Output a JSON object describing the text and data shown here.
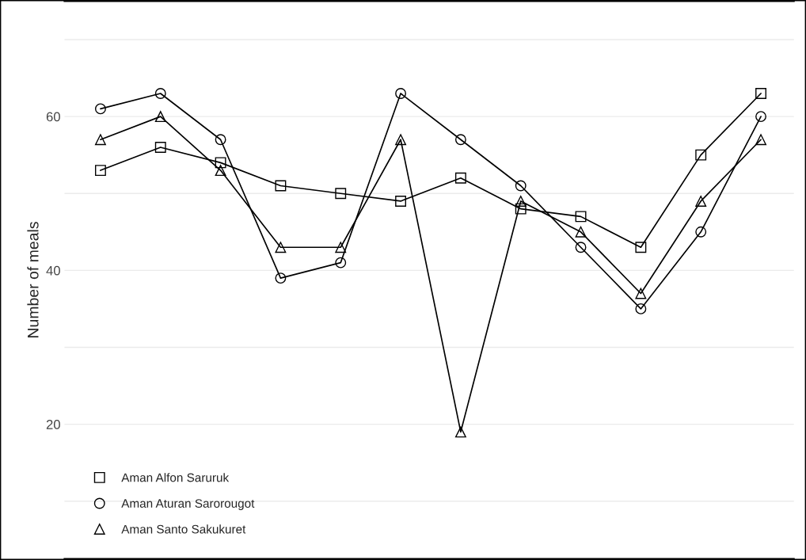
{
  "chart_data": {
    "type": "line",
    "ylabel": "Number of meals",
    "categories": [
      null,
      null,
      null,
      null,
      null,
      null,
      null,
      null,
      null,
      null,
      null,
      null
    ],
    "series": [
      {
        "name": "Aman Alfon Saruruk",
        "color": "#000000",
        "marker": "square",
        "values": [
          53,
          56,
          54,
          51,
          50,
          49,
          52,
          48,
          47,
          43,
          55,
          63
        ]
      },
      {
        "name": "Aman Aturan Sarorougot",
        "color": "#000000",
        "marker": "circle",
        "values": [
          61,
          63,
          57,
          39,
          41,
          63,
          57,
          51,
          43,
          35,
          45,
          60
        ]
      },
      {
        "name": "Aman Santo Sakukuret",
        "color": "#000000",
        "marker": "triangle",
        "values": [
          57,
          60,
          53,
          43,
          43,
          57,
          19,
          49,
          45,
          37,
          49,
          57
        ]
      }
    ],
    "ylim": [
      2.5,
      75
    ],
    "yticks": [
      {
        "value": 10,
        "label": null
      },
      20,
      {
        "value": 30,
        "label": null
      },
      40,
      {
        "value": 50,
        "label": null
      },
      60,
      {
        "value": 70,
        "label": null
      }
    ],
    "grid": "y",
    "legend": "bottom left",
    "line_style": "solid"
  }
}
